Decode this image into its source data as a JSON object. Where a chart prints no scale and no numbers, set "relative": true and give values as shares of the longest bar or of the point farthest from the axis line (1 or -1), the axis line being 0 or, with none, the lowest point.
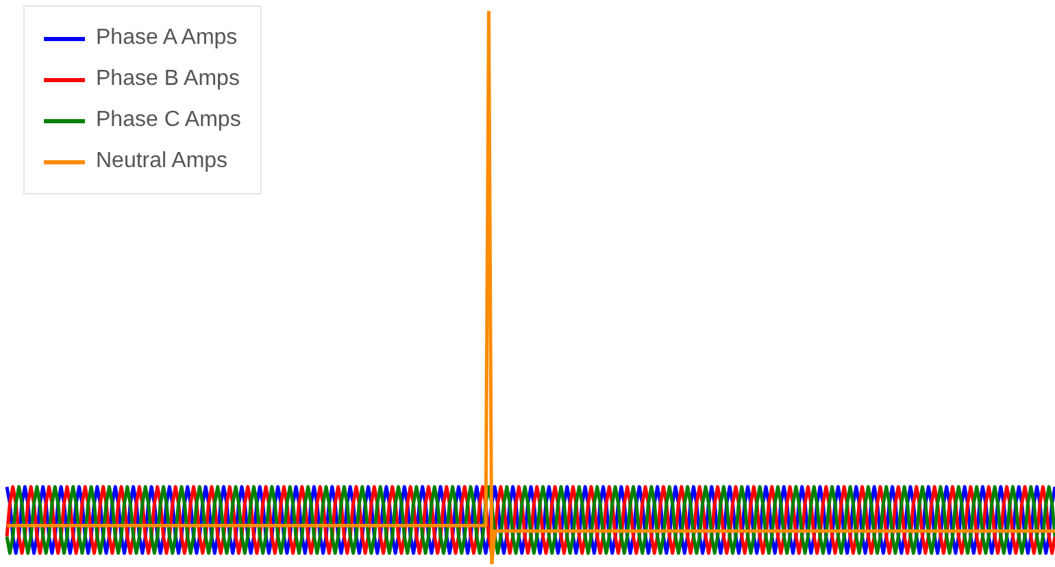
{
  "chart_data": {
    "type": "line",
    "relative": true,
    "legend": "top left",
    "categories": [
      null,
      null,
      null,
      null,
      null,
      null,
      null,
      null,
      null,
      null,
      null,
      null,
      null,
      null,
      null,
      null,
      null,
      null,
      null,
      null,
      null,
      null,
      null,
      null,
      null,
      null,
      null,
      null,
      null,
      null,
      null,
      null,
      null,
      null,
      null,
      null,
      null,
      null,
      null,
      null,
      null,
      null,
      null,
      null,
      null,
      null,
      null,
      null,
      null,
      null,
      null,
      null,
      null,
      null,
      null,
      null,
      null,
      null,
      null,
      null,
      null,
      null,
      null,
      null,
      null,
      null,
      null,
      null,
      null,
      null,
      null,
      null,
      null,
      null,
      null,
      null,
      null,
      null,
      null,
      null,
      null,
      null,
      null,
      null,
      null,
      null,
      null,
      null,
      null,
      null,
      null,
      null,
      null,
      null,
      null,
      null,
      null,
      null,
      null,
      null,
      null,
      null,
      null,
      null,
      null,
      null,
      null,
      null,
      null,
      null,
      null,
      null,
      null,
      null,
      null,
      null,
      null,
      null,
      null,
      null,
      null,
      null,
      null,
      null,
      null,
      null,
      null,
      null,
      null,
      null,
      null,
      null,
      null,
      null,
      null,
      null,
      null,
      null,
      null,
      null,
      null,
      null,
      null,
      null,
      null,
      null,
      null,
      null,
      null,
      null,
      null,
      null,
      null,
      null,
      null,
      null,
      null,
      null,
      null,
      null,
      null,
      null,
      null,
      null,
      null,
      null,
      null,
      null,
      null,
      null,
      null,
      null,
      null,
      null,
      null,
      null,
      null,
      null,
      null,
      null,
      null,
      null,
      null,
      null,
      null,
      null,
      null,
      null,
      null,
      null,
      null,
      null,
      null,
      null,
      null,
      null,
      null,
      null,
      null,
      null,
      null,
      null,
      null,
      null,
      null,
      null,
      null,
      null,
      null,
      null,
      null,
      null,
      null,
      null,
      null,
      null,
      null,
      null,
      null,
      null,
      null,
      null,
      null,
      null,
      null,
      null,
      null,
      null,
      null,
      null,
      null,
      null,
      null,
      null,
      null,
      null,
      null,
      null,
      null,
      null,
      null,
      null,
      null,
      null,
      null,
      null,
      null,
      null,
      null,
      null,
      null,
      null,
      null,
      null,
      null,
      null,
      null,
      null,
      null,
      null,
      null,
      null,
      null,
      null,
      null,
      null,
      null,
      null,
      null,
      null,
      null,
      null,
      null,
      null,
      null,
      null,
      null,
      null,
      null,
      null,
      null,
      null,
      null,
      null,
      null,
      null,
      null,
      null,
      null,
      null,
      null,
      null,
      null,
      null,
      null,
      null,
      null,
      null,
      null,
      null,
      null,
      null,
      null,
      null,
      null,
      null,
      null,
      null,
      null,
      null,
      null,
      null,
      null,
      null,
      null,
      null,
      null,
      null,
      null,
      null,
      null,
      null,
      null,
      null,
      null,
      null,
      null,
      null,
      null,
      null,
      null,
      null,
      null,
      null,
      null,
      null,
      null,
      null,
      null,
      null,
      null,
      null,
      null,
      null,
      null,
      null,
      null,
      null,
      null
    ],
    "series": [
      {
        "name": "Phase A Amps",
        "color": "#0000ff",
        "values": [
          0.14,
          0.11,
          0.05,
          0.02,
          0.05,
          0.11,
          0.14,
          0.11,
          0.05,
          0.02,
          0.05,
          0.11,
          0.14,
          0.11,
          0.05,
          0.02,
          0.05,
          0.11,
          0.14,
          0.11,
          0.05,
          0.02,
          0.05,
          0.11,
          0.14,
          0.11,
          0.05,
          0.02,
          0.05,
          0.11,
          0.14,
          0.11,
          0.05,
          0.02,
          0.05,
          0.11,
          0.14,
          0.11,
          0.05,
          0.02,
          0.05,
          0.11,
          0.14,
          0.11,
          0.05,
          0.02,
          0.05,
          0.11,
          0.14,
          0.11,
          0.05,
          0.02,
          0.05,
          0.11,
          0.14,
          0.11,
          0.05,
          0.02,
          0.05,
          0.11,
          0.14,
          0.11,
          0.05,
          0.02,
          0.05,
          0.11,
          0.14,
          0.11,
          0.05,
          0.02,
          0.05,
          0.11,
          0.14,
          0.11,
          0.05,
          0.02,
          0.05,
          0.11,
          0.14,
          0.11,
          0.05,
          0.02,
          0.05,
          0.11,
          0.14,
          0.11,
          0.05,
          0.02,
          0.05,
          0.11,
          0.14,
          0.11,
          0.05,
          0.02,
          0.05,
          0.11,
          0.14,
          0.11,
          0.05,
          0.02,
          0.05,
          0.11,
          0.14,
          0.11,
          0.05,
          0.02,
          0.05,
          0.11,
          0.14,
          0.11,
          0.05,
          0.02,
          0.05,
          0.11,
          0.14,
          0.11,
          0.05,
          0.02,
          0.05,
          0.11,
          0.14,
          0.11,
          0.05,
          0.02,
          0.05,
          0.11,
          0.14,
          0.11,
          0.05,
          0.02,
          0.05,
          0.11,
          0.14,
          0.11,
          0.05,
          0.02,
          0.05,
          0.11,
          0.14,
          0.11,
          0.05,
          0.02,
          0.05,
          0.11,
          0.14,
          0.11,
          0.05,
          0.02,
          0.05,
          0.11,
          0.14,
          0.11,
          0.05,
          0.02,
          0.05,
          0.11,
          0.14,
          0.11,
          0.05,
          0.02,
          0.05,
          0.11,
          0.14,
          0.11,
          0.05,
          0.02,
          0.05,
          0.11,
          0.14,
          0.11,
          0.05,
          0.02,
          0.05,
          0.11,
          0.14,
          0.11,
          0.05,
          0.02,
          0.05,
          0.11,
          0.14,
          0.11,
          0.05,
          0.02,
          0.05,
          0.11,
          0.14,
          0.11,
          0.05,
          0.02,
          0.05,
          0.11,
          0.14,
          0.11,
          0.05,
          0.02,
          0.05,
          0.11,
          0.14,
          0.11,
          0.05,
          0.02,
          0.05,
          0.11,
          0.14,
          0.11,
          0.05,
          0.02,
          0.05,
          0.11,
          0.14,
          0.11,
          0.05,
          0.02,
          0.05,
          0.11,
          0.14,
          0.11,
          0.05,
          0.02,
          0.05,
          0.11,
          0.14,
          0.11,
          0.05,
          0.02,
          0.05,
          0.11,
          0.14,
          0.11,
          0.05,
          0.02,
          0.05,
          0.11,
          0.14,
          0.11,
          0.05,
          0.02,
          0.05,
          0.11,
          0.14,
          0.11,
          0.05,
          0.02,
          0.05,
          0.11,
          0.14,
          0.11,
          0.05,
          0.02,
          0.05,
          0.11,
          0.14,
          0.11,
          0.05,
          0.02,
          0.05,
          0.11,
          0.14,
          0.11,
          0.05,
          0.02,
          0.05,
          0.11,
          0.14,
          0.11,
          0.05,
          0.02,
          0.05,
          0.11,
          0.14,
          0.11,
          0.05,
          0.02,
          0.05,
          0.11,
          0.14,
          0.11,
          0.05,
          0.02,
          0.05,
          0.11,
          0.14,
          0.11,
          0.05,
          0.02,
          0.05,
          0.11,
          0.14,
          0.11,
          0.05,
          0.02,
          0.05,
          0.11,
          0.14,
          0.11,
          0.05,
          0.02,
          0.05,
          0.11,
          0.14,
          0.11,
          0.05,
          0.02,
          0.05,
          0.11,
          0.14,
          0.11,
          0.05,
          0.02,
          0.05,
          0.11,
          0.14,
          0.11,
          0.05,
          0.02,
          0.05,
          0.11,
          0.14,
          0.11,
          0.05,
          0.02,
          0.05,
          0.11,
          0.14,
          0.11,
          0.05,
          0.02,
          0.05,
          0.11,
          0.14,
          0.11,
          0.05,
          0.02,
          0.05,
          0.11,
          0.14,
          0.11,
          0.05,
          0.02,
          0.05,
          0.11,
          0.14,
          0.11,
          0.05,
          0.02,
          0.05,
          0.11,
          0.14
        ]
      },
      {
        "name": "Phase B Amps",
        "color": "#ff0000",
        "values": [
          0.05,
          0.11,
          0.14,
          0.11,
          0.05,
          0.02,
          0.05,
          0.11,
          0.14,
          0.11,
          0.05,
          0.02,
          0.05,
          0.11,
          0.14,
          0.11,
          0.05,
          0.02,
          0.05,
          0.11,
          0.14,
          0.11,
          0.05,
          0.02,
          0.05,
          0.11,
          0.14,
          0.11,
          0.05,
          0.02,
          0.05,
          0.11,
          0.14,
          0.11,
          0.05,
          0.02,
          0.05,
          0.11,
          0.14,
          0.11,
          0.05,
          0.02,
          0.05,
          0.11,
          0.14,
          0.11,
          0.05,
          0.02,
          0.05,
          0.11,
          0.14,
          0.11,
          0.05,
          0.02,
          0.05,
          0.11,
          0.14,
          0.11,
          0.05,
          0.02,
          0.05,
          0.11,
          0.14,
          0.11,
          0.05,
          0.02,
          0.05,
          0.11,
          0.14,
          0.11,
          0.05,
          0.02,
          0.05,
          0.11,
          0.14,
          0.11,
          0.05,
          0.02,
          0.05,
          0.11,
          0.14,
          0.11,
          0.05,
          0.02,
          0.05,
          0.11,
          0.14,
          0.11,
          0.05,
          0.02,
          0.05,
          0.11,
          0.14,
          0.11,
          0.05,
          0.02,
          0.05,
          0.11,
          0.14,
          0.11,
          0.05,
          0.02,
          0.05,
          0.11,
          0.14,
          0.11,
          0.05,
          0.02,
          0.05,
          0.11,
          0.14,
          0.11,
          0.05,
          0.02,
          0.05,
          0.11,
          0.14,
          0.11,
          0.05,
          0.02,
          0.05,
          0.11,
          0.14,
          0.11,
          0.05,
          0.02,
          0.05,
          0.11,
          0.14,
          0.11,
          0.05,
          0.02,
          0.05,
          0.11,
          0.14,
          0.11,
          0.05,
          0.02,
          0.05,
          0.11,
          0.14,
          0.11,
          0.05,
          0.02,
          0.05,
          0.11,
          0.14,
          0.11,
          0.05,
          0.02,
          0.05,
          0.11,
          0.14,
          0.11,
          0.05,
          0.02,
          0.05,
          0.11,
          0.14,
          0.11,
          0.05,
          0.02,
          0.05,
          0.11,
          0.14,
          0.11,
          0.05,
          0.02,
          0.05,
          0.11,
          0.14,
          0.11,
          0.05,
          0.02,
          0.05,
          0.11,
          0.14,
          0.11,
          0.05,
          0.02,
          0.05,
          0.11,
          0.14,
          0.11,
          0.05,
          0.02,
          0.05,
          0.11,
          0.14,
          0.11,
          0.05,
          0.02,
          0.05,
          0.11,
          0.14,
          0.11,
          0.05,
          0.02,
          0.05,
          0.11,
          0.14,
          0.11,
          0.05,
          0.02,
          0.05,
          0.11,
          0.14,
          0.11,
          0.05,
          0.02,
          0.05,
          0.11,
          0.14,
          0.11,
          0.05,
          0.02,
          0.05,
          0.11,
          0.14,
          0.11,
          0.05,
          0.02,
          0.05,
          0.11,
          0.14,
          0.11,
          0.05,
          0.02,
          0.05,
          0.11,
          0.14,
          0.11,
          0.05,
          0.02,
          0.05,
          0.11,
          0.14,
          0.11,
          0.05,
          0.02,
          0.05,
          0.11,
          0.14,
          0.11,
          0.05,
          0.02,
          0.05,
          0.11,
          0.14,
          0.11,
          0.05,
          0.02,
          0.05,
          0.11,
          0.14,
          0.11,
          0.05,
          0.02,
          0.05,
          0.11,
          0.14,
          0.11,
          0.05,
          0.02,
          0.05,
          0.11,
          0.14,
          0.11,
          0.05,
          0.02,
          0.05,
          0.11,
          0.14,
          0.11,
          0.05,
          0.02,
          0.05,
          0.11,
          0.14,
          0.11,
          0.05,
          0.02,
          0.05,
          0.11,
          0.14,
          0.11,
          0.05,
          0.02,
          0.05,
          0.11,
          0.14,
          0.11,
          0.05,
          0.02,
          0.05,
          0.11,
          0.14,
          0.11,
          0.05,
          0.02,
          0.05,
          0.11,
          0.14,
          0.11,
          0.05,
          0.02,
          0.05,
          0.11,
          0.14,
          0.11,
          0.05,
          0.02,
          0.05,
          0.11,
          0.14,
          0.11,
          0.05,
          0.02,
          0.05,
          0.11,
          0.14,
          0.11,
          0.05,
          0.02,
          0.05,
          0.11,
          0.14,
          0.11,
          0.05,
          0.02,
          0.05,
          0.11,
          0.14,
          0.11,
          0.05,
          0.02,
          0.05,
          0.11,
          0.14,
          0.11,
          0.05,
          0.02,
          0.05,
          0.11,
          0.14,
          0.11,
          0.05,
          0.02,
          0.05
        ]
      },
      {
        "name": "Phase C Amps",
        "color": "#008000",
        "values": [
          0.05,
          0.02,
          0.05,
          0.11,
          0.14,
          0.11,
          0.05,
          0.02,
          0.05,
          0.11,
          0.14,
          0.11,
          0.05,
          0.02,
          0.05,
          0.11,
          0.14,
          0.11,
          0.05,
          0.02,
          0.05,
          0.11,
          0.14,
          0.11,
          0.05,
          0.02,
          0.05,
          0.11,
          0.14,
          0.11,
          0.05,
          0.02,
          0.05,
          0.11,
          0.14,
          0.11,
          0.05,
          0.02,
          0.05,
          0.11,
          0.14,
          0.11,
          0.05,
          0.02,
          0.05,
          0.11,
          0.14,
          0.11,
          0.05,
          0.02,
          0.05,
          0.11,
          0.14,
          0.11,
          0.05,
          0.02,
          0.05,
          0.11,
          0.14,
          0.11,
          0.05,
          0.02,
          0.05,
          0.11,
          0.14,
          0.11,
          0.05,
          0.02,
          0.05,
          0.11,
          0.14,
          0.11,
          0.05,
          0.02,
          0.05,
          0.11,
          0.14,
          0.11,
          0.05,
          0.02,
          0.05,
          0.11,
          0.14,
          0.11,
          0.05,
          0.02,
          0.05,
          0.11,
          0.14,
          0.11,
          0.05,
          0.02,
          0.05,
          0.11,
          0.14,
          0.11,
          0.05,
          0.02,
          0.05,
          0.11,
          0.14,
          0.11,
          0.05,
          0.02,
          0.05,
          0.11,
          0.14,
          0.11,
          0.05,
          0.02,
          0.05,
          0.11,
          0.14,
          0.11,
          0.05,
          0.02,
          0.05,
          0.11,
          0.14,
          0.11,
          0.05,
          0.02,
          0.05,
          0.11,
          0.14,
          0.11,
          0.05,
          0.02,
          0.05,
          0.11,
          0.14,
          0.11,
          0.05,
          0.02,
          0.05,
          0.11,
          0.14,
          0.11,
          0.05,
          0.02,
          0.05,
          0.11,
          0.14,
          0.11,
          0.05,
          0.02,
          0.05,
          0.11,
          0.14,
          0.11,
          0.05,
          0.02,
          0.05,
          0.11,
          0.14,
          0.11,
          0.05,
          0.02,
          0.05,
          0.11,
          0.14,
          0.11,
          0.05,
          0.02,
          0.05,
          0.11,
          0.14,
          0.11,
          0.05,
          0.02,
          0.05,
          0.11,
          0.14,
          0.11,
          0.05,
          0.02,
          0.05,
          0.11,
          0.14,
          0.11,
          0.05,
          0.02,
          0.05,
          0.11,
          0.14,
          0.11,
          0.05,
          0.02,
          0.05,
          0.11,
          0.14,
          0.11,
          0.05,
          0.02,
          0.05,
          0.11,
          0.14,
          0.11,
          0.05,
          0.02,
          0.05,
          0.11,
          0.14,
          0.11,
          0.05,
          0.02,
          0.05,
          0.11,
          0.14,
          0.11,
          0.05,
          0.02,
          0.05,
          0.11,
          0.14,
          0.11,
          0.05,
          0.02,
          0.05,
          0.11,
          0.14,
          0.11,
          0.05,
          0.02,
          0.05,
          0.11,
          0.14,
          0.11,
          0.05,
          0.02,
          0.05,
          0.11,
          0.14,
          0.11,
          0.05,
          0.02,
          0.05,
          0.11,
          0.14,
          0.11,
          0.05,
          0.02,
          0.05,
          0.11,
          0.14,
          0.11,
          0.05,
          0.02,
          0.05,
          0.11,
          0.14,
          0.11,
          0.05,
          0.02,
          0.05,
          0.11,
          0.14,
          0.11,
          0.05,
          0.02,
          0.05,
          0.11,
          0.14,
          0.11,
          0.05,
          0.02,
          0.05,
          0.11,
          0.14,
          0.11,
          0.05,
          0.02,
          0.05,
          0.11,
          0.14,
          0.11,
          0.05,
          0.02,
          0.05,
          0.11,
          0.14,
          0.11,
          0.05,
          0.02,
          0.05,
          0.11,
          0.14,
          0.11,
          0.05,
          0.02,
          0.05,
          0.11,
          0.14,
          0.11,
          0.05,
          0.02,
          0.05,
          0.11,
          0.14,
          0.11,
          0.05,
          0.02,
          0.05,
          0.11,
          0.14,
          0.11,
          0.05,
          0.02,
          0.05,
          0.11,
          0.14,
          0.11,
          0.05,
          0.02,
          0.05,
          0.11,
          0.14,
          0.11,
          0.05,
          0.02,
          0.05,
          0.11,
          0.14,
          0.11,
          0.05,
          0.02,
          0.05,
          0.11,
          0.14,
          0.11,
          0.05,
          0.02,
          0.05,
          0.11,
          0.14,
          0.11,
          0.05,
          0.02,
          0.05,
          0.11,
          0.14,
          0.11,
          0.05,
          0.02,
          0.05,
          0.11,
          0.14,
          0.11,
          0.05
        ]
      },
      {
        "name": "Neutral Amps",
        "color": "#ff8c00",
        "values": [
          0.07,
          0.07,
          0.07,
          0.07,
          0.07,
          0.07,
          0.07,
          0.07,
          0.07,
          0.07,
          0.07,
          0.07,
          0.07,
          0.07,
          0.07,
          0.07,
          0.07,
          0.07,
          0.07,
          0.07,
          0.07,
          0.07,
          0.07,
          0.07,
          0.07,
          0.07,
          0.07,
          0.07,
          0.07,
          0.07,
          0.07,
          0.07,
          0.07,
          0.07,
          0.07,
          0.07,
          0.07,
          0.07,
          0.07,
          0.07,
          0.07,
          0.07,
          0.07,
          0.07,
          0.07,
          0.07,
          0.07,
          0.07,
          0.07,
          0.07,
          0.07,
          0.07,
          0.07,
          0.07,
          0.07,
          0.07,
          0.07,
          0.07,
          0.07,
          0.07,
          0.07,
          0.07,
          0.07,
          0.07,
          0.07,
          0.07,
          0.07,
          0.07,
          0.07,
          0.07,
          0.07,
          0.07,
          0.07,
          0.07,
          0.07,
          0.07,
          0.07,
          0.07,
          0.07,
          0.07,
          0.07,
          0.07,
          0.07,
          0.07,
          0.07,
          0.07,
          0.07,
          0.07,
          0.07,
          0.07,
          0.07,
          0.07,
          0.07,
          0.07,
          0.07,
          0.07,
          0.07,
          0.07,
          0.07,
          0.07,
          0.07,
          0.07,
          0.07,
          0.07,
          0.07,
          0.07,
          0.07,
          0.07,
          0.07,
          0.07,
          0.07,
          0.07,
          0.07,
          0.07,
          0.07,
          0.07,
          0.07,
          0.07,
          0.07,
          0.07,
          0.07,
          0.07,
          0.07,
          0.07,
          0.07,
          0.07,
          0.07,
          0.07,
          0.07,
          0.07,
          0.07,
          0.07,
          0.07,
          0.07,
          0.07,
          0.07,
          0.07,
          0.07,
          0.07,
          0.07,
          0.07,
          0.07,
          0.07,
          0.07,
          0.07,
          0.07,
          0.07,
          0.07,
          0.07,
          0.07,
          0.07,
          0.07,
          0.07,
          0.07,
          0.07,
          0.07,
          0.07,
          0.07,
          0.07,
          0.07,
          1,
          0,
          0.06,
          0.06,
          0.06,
          0.06,
          0.06,
          0.06,
          0.06,
          0.06,
          0.06,
          0.06,
          0.06,
          0.06,
          0.06,
          0.06,
          0.06,
          0.06,
          0.06,
          0.06,
          0.06,
          0.06,
          0.06,
          0.06,
          0.06,
          0.06,
          0.06,
          0.06,
          0.06,
          0.06,
          0.06,
          0.06,
          0.06,
          0.06,
          0.06,
          0.06,
          0.06,
          0.06,
          0.06,
          0.06,
          0.06,
          0.06,
          0.06,
          0.06,
          0.06,
          0.06,
          0.06,
          0.06,
          0.06,
          0.06,
          0.06,
          0.06,
          0.06,
          0.06,
          0.06,
          0.06,
          0.06,
          0.06,
          0.06,
          0.06,
          0.06,
          0.06,
          0.06,
          0.06,
          0.06,
          0.06,
          0.06,
          0.06,
          0.06,
          0.06,
          0.06,
          0.06,
          0.06,
          0.06,
          0.06,
          0.06,
          0.06,
          0.06,
          0.06,
          0.06,
          0.06,
          0.06,
          0.06,
          0.06,
          0.06,
          0.06,
          0.06,
          0.06,
          0.06,
          0.06,
          0.06,
          0.06,
          0.06,
          0.06,
          0.06,
          0.06,
          0.06,
          0.06,
          0.06,
          0.06,
          0.06,
          0.06,
          0.06,
          0.06,
          0.06,
          0.06,
          0.06,
          0.06,
          0.06,
          0.06,
          0.06,
          0.06,
          0.06,
          0.06,
          0.06,
          0.06,
          0.06,
          0.06,
          0.06,
          0.06,
          0.06,
          0.06,
          0.06,
          0.06,
          0.06,
          0.06,
          0.06,
          0.06,
          0.06,
          0.06,
          0.06,
          0.06,
          0.06,
          0.06,
          0.06,
          0.06,
          0.06,
          0.06,
          0.06,
          0.06,
          0.06,
          0.06,
          0.06,
          0.06,
          0.06,
          0.06,
          0.06,
          0.06,
          0.06,
          0.06,
          0.06,
          0.06,
          0.06,
          0.06,
          0.06,
          0.06,
          0.06,
          0.06,
          0.06,
          0.06,
          0.06,
          0.06,
          0.06,
          0.06,
          0.06,
          0.06,
          0.06,
          0.06,
          0.06,
          0.06,
          0.06,
          0.06,
          0.06,
          0.06,
          0.06,
          0.06,
          0.06,
          0.06,
          0.06,
          0.06,
          0.06,
          0.06,
          0.06,
          0.06,
          0.06,
          0.06,
          0.06,
          0.06,
          0.06
        ]
      }
    ]
  }
}
